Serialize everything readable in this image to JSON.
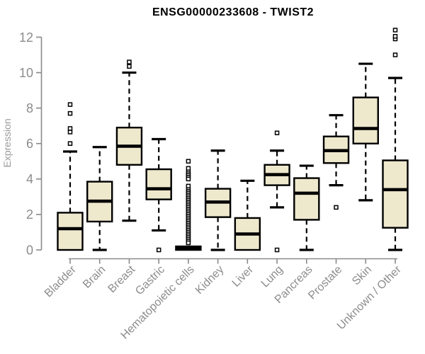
{
  "colors": {
    "box_fill": "#EEE8CD",
    "box_stroke": "#000000",
    "axis": "#8A8A8A",
    "tick_label": "#8C8C8C",
    "title_color": "#000000",
    "background": "#FFFFFF"
  },
  "chart_data": {
    "type": "boxplot",
    "title": "ENSG00000233608 - TWIST2",
    "xlabel": "",
    "ylabel": "Expression",
    "ylim": [
      0,
      12.4
    ],
    "yticks": [
      0,
      2,
      4,
      6,
      8,
      10,
      12
    ],
    "grid": false,
    "categories": [
      "Bladder",
      "Brain",
      "Breast",
      "Gastric",
      "Hematopoietic cells",
      "Kidney",
      "Liver",
      "Lung",
      "Pancreas",
      "Prostate",
      "Skin",
      "Unknown / Other"
    ],
    "series": [
      {
        "category": "Bladder",
        "whisker_low": 0.0,
        "q1": 0.0,
        "median": 1.2,
        "q3": 2.1,
        "whisker_high": 5.55,
        "outliers": [
          6.0,
          6.65,
          6.85,
          7.7,
          8.2
        ]
      },
      {
        "category": "Brain",
        "whisker_low": 0.0,
        "q1": 1.6,
        "median": 2.75,
        "q3": 3.85,
        "whisker_high": 5.8,
        "outliers": []
      },
      {
        "category": "Breast",
        "whisker_low": 1.65,
        "q1": 4.8,
        "median": 5.85,
        "q3": 6.9,
        "whisker_high": 10.0,
        "outliers": [
          10.35,
          10.6
        ]
      },
      {
        "category": "Gastric",
        "whisker_low": 1.1,
        "q1": 2.85,
        "median": 3.45,
        "q3": 4.55,
        "whisker_high": 6.25,
        "outliers": [
          0.0
        ]
      },
      {
        "category": "Hematopoietic cells",
        "whisker_low": 0.0,
        "q1": 0.0,
        "median": 0.1,
        "q3": 0.2,
        "whisker_high": 0.2,
        "outliers": [
          5.0,
          4.6,
          4.4,
          4.3,
          4.2,
          4.1,
          4.0,
          3.6,
          3.4,
          3.3,
          3.2,
          3.1,
          3.0,
          2.9,
          2.8,
          2.7,
          2.6,
          2.5,
          2.4,
          2.3,
          2.2,
          2.1,
          2.0,
          1.9,
          1.8,
          1.7,
          1.6,
          1.5,
          1.4,
          1.3,
          1.2,
          1.1,
          1.0,
          0.9,
          0.8,
          0.7,
          0.6,
          0.5,
          0.4
        ]
      },
      {
        "category": "Kidney",
        "whisker_low": 0.0,
        "q1": 1.85,
        "median": 2.7,
        "q3": 3.45,
        "whisker_high": 5.6,
        "outliers": []
      },
      {
        "category": "Liver",
        "whisker_low": 0.0,
        "q1": 0.0,
        "median": 0.9,
        "q3": 1.8,
        "whisker_high": 3.9,
        "outliers": []
      },
      {
        "category": "Lung",
        "whisker_low": 2.4,
        "q1": 3.65,
        "median": 4.25,
        "q3": 4.8,
        "whisker_high": 5.6,
        "outliers": [
          0.0,
          6.6
        ]
      },
      {
        "category": "Pancreas",
        "whisker_low": 0.0,
        "q1": 1.7,
        "median": 3.2,
        "q3": 4.05,
        "whisker_high": 4.75,
        "outliers": []
      },
      {
        "category": "Prostate",
        "whisker_low": 3.65,
        "q1": 4.9,
        "median": 5.6,
        "q3": 6.4,
        "whisker_high": 7.6,
        "outliers": [
          2.4
        ]
      },
      {
        "category": "Skin",
        "whisker_low": 2.8,
        "q1": 6.0,
        "median": 6.85,
        "q3": 8.6,
        "whisker_high": 10.5,
        "outliers": []
      },
      {
        "category": "Unknown / Other",
        "whisker_low": 0.0,
        "q1": 1.25,
        "median": 3.4,
        "q3": 5.05,
        "whisker_high": 9.7,
        "outliers": [
          11.0,
          11.9,
          12.05,
          12.4
        ]
      }
    ]
  }
}
